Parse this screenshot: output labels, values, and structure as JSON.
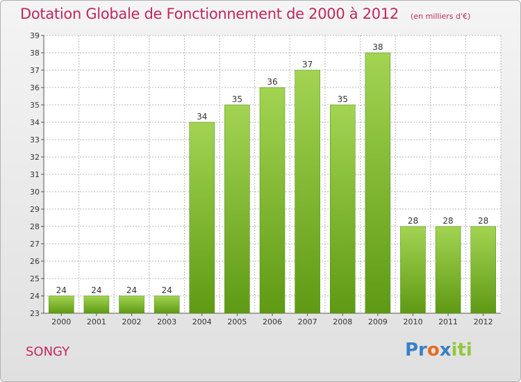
{
  "header": {
    "title": "Dotation Globale de Fonctionnement de 2000 à 2012",
    "subtitle": "(en milliers d'€)"
  },
  "footer": {
    "commune": "SONGY",
    "logo_text": "Proxiti"
  },
  "colors": {
    "title": "#c0265f",
    "bar_top": "#a2d452",
    "bar_bottom": "#5f9a14",
    "grid": "#b8b8b8"
  },
  "chart_data": {
    "type": "bar",
    "title": "Dotation Globale de Fonctionnement de 2000 à 2012",
    "subtitle": "(en milliers d'€)",
    "xlabel": "",
    "ylabel": "",
    "categories": [
      "2000",
      "2001",
      "2002",
      "2003",
      "2004",
      "2005",
      "2006",
      "2007",
      "2008",
      "2009",
      "2010",
      "2011",
      "2012"
    ],
    "values": [
      24,
      24,
      24,
      24,
      34,
      35,
      36,
      37,
      35,
      38,
      28,
      28,
      28
    ],
    "ylim": [
      23,
      39
    ],
    "yticks": [
      23,
      24,
      25,
      26,
      27,
      28,
      29,
      30,
      31,
      32,
      33,
      34,
      35,
      36,
      37,
      38,
      39
    ],
    "grid": true,
    "legend": "none"
  }
}
